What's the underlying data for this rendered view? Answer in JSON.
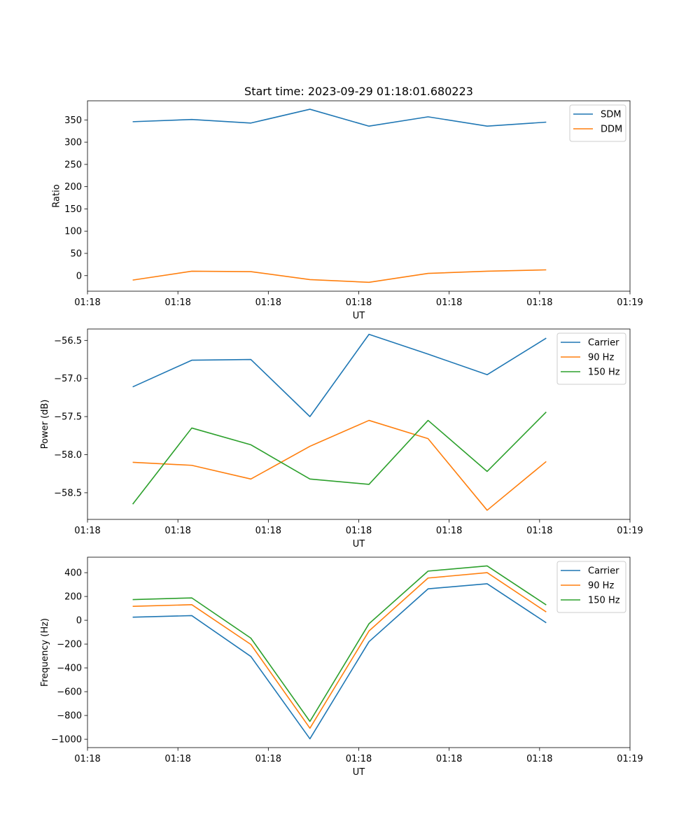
{
  "title": "Start time: 2023-09-29 01:18:01.680223",
  "chart_data": [
    {
      "type": "line",
      "xlabel": "UT",
      "ylabel": "Ratio",
      "xlim": [
        0,
        9
      ],
      "ylim": [
        -35,
        393
      ],
      "xticks": [
        0.0,
        1.5,
        3.0,
        4.5,
        6.0,
        7.5,
        9.0
      ],
      "xtick_labels": [
        "01:18",
        "01:18",
        "01:18",
        "01:18",
        "01:18",
        "01:18",
        "01:19"
      ],
      "yticks": [
        0,
        50,
        100,
        150,
        200,
        250,
        300,
        350
      ],
      "ytick_labels": [
        "0",
        "50",
        "100",
        "150",
        "200",
        "250",
        "300",
        "350"
      ],
      "legend_position": "top-right",
      "x": [
        0.75,
        1.73,
        2.71,
        3.69,
        4.67,
        5.65,
        6.63,
        7.61
      ],
      "series": [
        {
          "name": "SDM",
          "color": "#1f77b4",
          "values": [
            346,
            351,
            343,
            374,
            336,
            357,
            336,
            345
          ]
        },
        {
          "name": "DDM",
          "color": "#ff7f0e",
          "values": [
            -10,
            10,
            9,
            -9,
            -15,
            5,
            10,
            13
          ]
        }
      ]
    },
    {
      "type": "line",
      "xlabel": "UT",
      "ylabel": "Power (dB)",
      "xlim": [
        0,
        9
      ],
      "ylim": [
        -58.85,
        -56.35
      ],
      "xticks": [
        0.0,
        1.5,
        3.0,
        4.5,
        6.0,
        7.5,
        9.0
      ],
      "xtick_labels": [
        "01:18",
        "01:18",
        "01:18",
        "01:18",
        "01:18",
        "01:18",
        "01:19"
      ],
      "yticks": [
        -58.5,
        -58.0,
        -57.5,
        -57.0,
        -56.5
      ],
      "ytick_labels": [
        "−58.5",
        "−58.0",
        "−57.5",
        "−57.0",
        "−56.5"
      ],
      "legend_position": "top-right",
      "x": [
        0.75,
        1.73,
        2.71,
        3.69,
        4.67,
        5.65,
        6.63,
        7.61
      ],
      "series": [
        {
          "name": "Carrier",
          "color": "#1f77b4",
          "values": [
            -57.11,
            -56.76,
            -56.75,
            -57.5,
            -56.42,
            -56.68,
            -56.95,
            -56.47
          ]
        },
        {
          "name": "90 Hz",
          "color": "#ff7f0e",
          "values": [
            -58.1,
            -58.14,
            -58.32,
            -57.89,
            -57.55,
            -57.79,
            -58.73,
            -58.09
          ]
        },
        {
          "name": "150 Hz",
          "color": "#2ca02c",
          "values": [
            -58.65,
            -57.65,
            -57.87,
            -58.32,
            -58.39,
            -57.55,
            -58.22,
            -57.44
          ]
        }
      ]
    },
    {
      "type": "line",
      "xlabel": "UT",
      "ylabel": "Frequency (Hz)",
      "xlim": [
        0,
        9
      ],
      "ylim": [
        -1070,
        530
      ],
      "xticks": [
        0.0,
        1.5,
        3.0,
        4.5,
        6.0,
        7.5,
        9.0
      ],
      "xtick_labels": [
        "01:18",
        "01:18",
        "01:18",
        "01:18",
        "01:18",
        "01:18",
        "01:19"
      ],
      "yticks": [
        -1000,
        -800,
        -600,
        -400,
        -200,
        0,
        200,
        400
      ],
      "ytick_labels": [
        "−1000",
        "−800",
        "−600",
        "−400",
        "−200",
        "0",
        "200",
        "400"
      ],
      "legend_position": "top-right",
      "x": [
        0.75,
        1.73,
        2.71,
        3.69,
        4.67,
        5.65,
        6.63,
        7.61
      ],
      "series": [
        {
          "name": "Carrier",
          "color": "#1f77b4",
          "values": [
            26,
            39,
            -304,
            -996,
            -180,
            264,
            307,
            -21
          ]
        },
        {
          "name": "90 Hz",
          "color": "#ff7f0e",
          "values": [
            117,
            131,
            -203,
            -907,
            -90,
            355,
            400,
            70
          ]
        },
        {
          "name": "150 Hz",
          "color": "#2ca02c",
          "values": [
            174,
            188,
            -150,
            -850,
            -29,
            413,
            457,
            129
          ]
        }
      ]
    }
  ]
}
